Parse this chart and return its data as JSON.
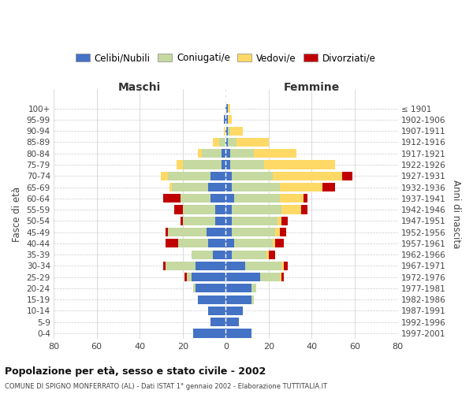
{
  "age_groups": [
    "0-4",
    "5-9",
    "10-14",
    "15-19",
    "20-24",
    "25-29",
    "30-34",
    "35-39",
    "40-44",
    "45-49",
    "50-54",
    "55-59",
    "60-64",
    "65-69",
    "70-74",
    "75-79",
    "80-84",
    "85-89",
    "90-94",
    "95-99",
    "100+"
  ],
  "birth_years": [
    "1997-2001",
    "1992-1996",
    "1987-1991",
    "1982-1986",
    "1977-1981",
    "1972-1976",
    "1967-1971",
    "1962-1966",
    "1957-1961",
    "1952-1956",
    "1947-1951",
    "1942-1946",
    "1937-1941",
    "1932-1936",
    "1927-1931",
    "1922-1926",
    "1917-1921",
    "1912-1916",
    "1907-1911",
    "1902-1906",
    "≤ 1901"
  ],
  "colors": {
    "celibe": "#4472C4",
    "coniugato": "#C5D9A0",
    "vedovo": "#FFD966",
    "divorziato": "#C00000"
  },
  "maschi": {
    "celibe": [
      15,
      7,
      8,
      13,
      14,
      16,
      14,
      6,
      8,
      9,
      5,
      5,
      7,
      8,
      7,
      2,
      2,
      0,
      0,
      1,
      0
    ],
    "coniugato": [
      0,
      0,
      0,
      0,
      1,
      2,
      14,
      10,
      14,
      18,
      15,
      15,
      14,
      17,
      20,
      18,
      9,
      3,
      0,
      0,
      0
    ],
    "vedovo": [
      0,
      0,
      0,
      0,
      0,
      0,
      0,
      0,
      0,
      0,
      0,
      0,
      0,
      1,
      3,
      3,
      2,
      3,
      1,
      0,
      0
    ],
    "divorziato": [
      0,
      0,
      0,
      0,
      0,
      1,
      1,
      0,
      6,
      1,
      1,
      4,
      8,
      0,
      0,
      0,
      0,
      0,
      0,
      0,
      0
    ]
  },
  "femmine": {
    "nubile": [
      12,
      6,
      8,
      12,
      12,
      16,
      9,
      3,
      4,
      3,
      3,
      3,
      4,
      3,
      3,
      2,
      2,
      1,
      1,
      1,
      1
    ],
    "coniugata": [
      0,
      0,
      0,
      1,
      2,
      9,
      17,
      16,
      18,
      20,
      21,
      23,
      21,
      22,
      19,
      16,
      11,
      4,
      1,
      0,
      0
    ],
    "vedova": [
      0,
      0,
      0,
      0,
      0,
      1,
      1,
      1,
      1,
      2,
      2,
      9,
      11,
      20,
      32,
      33,
      20,
      15,
      6,
      2,
      1
    ],
    "divorziata": [
      0,
      0,
      0,
      0,
      0,
      1,
      2,
      3,
      4,
      3,
      3,
      3,
      2,
      6,
      5,
      0,
      0,
      0,
      0,
      0,
      0
    ]
  },
  "xlim": 80,
  "title": "Popolazione per età, sesso e stato civile - 2002",
  "subtitle": "COMUNE DI SPIGNO MONFERRATO (AL) - Dati ISTAT 1° gennaio 2002 - Elaborazione TUTTITALIA.IT",
  "xlabel_left": "Maschi",
  "xlabel_right": "Femmine",
  "ylabel_left": "Fasce di età",
  "ylabel_right": "Anni di nascita",
  "legend_labels": [
    "Celibi/Nubili",
    "Coniugati/e",
    "Vedovi/e",
    "Divorziati/e"
  ],
  "background_color": "#ffffff",
  "grid_color": "#cccccc"
}
